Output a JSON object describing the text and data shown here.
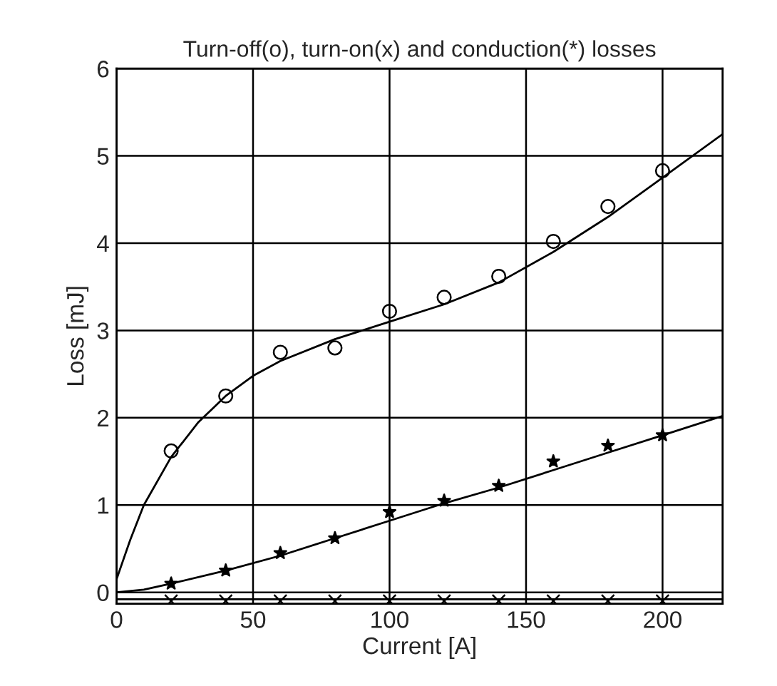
{
  "chart_data": {
    "type": "scatter",
    "title": "Turn-off(o), turn-on(x) and conduction(*) losses",
    "xlabel": "Current [A]",
    "ylabel": "Loss [mJ]",
    "xlim": [
      0,
      222
    ],
    "ylim": [
      -0.13,
      6
    ],
    "xticks": [
      0,
      50,
      100,
      150,
      200
    ],
    "yticks": [
      0,
      1,
      2,
      3,
      4,
      5,
      6
    ],
    "grid": true,
    "legend": false,
    "series": [
      {
        "marker": "circle",
        "color": "#000000",
        "x": [
          20,
          40,
          60,
          80,
          100,
          120,
          140,
          160,
          180,
          200
        ],
        "values": [
          1.62,
          2.25,
          2.75,
          2.8,
          3.22,
          3.38,
          3.62,
          4.02,
          4.42,
          4.83
        ]
      },
      {
        "type": "line",
        "marker": "none",
        "color": "#000000",
        "x": [
          0,
          5,
          10,
          20,
          30,
          40,
          50,
          60,
          80,
          90,
          100,
          120,
          140,
          160,
          180,
          200,
          222
        ],
        "values": [
          0.15,
          0.6,
          1.0,
          1.55,
          1.95,
          2.25,
          2.48,
          2.65,
          2.9,
          3.0,
          3.1,
          3.3,
          3.55,
          3.9,
          4.3,
          4.75,
          5.25
        ]
      },
      {
        "marker": "star",
        "color": "#000000",
        "x": [
          20,
          40,
          60,
          80,
          100,
          120,
          140,
          160,
          180,
          200
        ],
        "values": [
          0.1,
          0.25,
          0.45,
          0.62,
          0.92,
          1.05,
          1.22,
          1.5,
          1.68,
          1.8
        ]
      },
      {
        "type": "line",
        "marker": "none",
        "color": "#000000",
        "x": [
          0,
          10,
          20,
          40,
          60,
          80,
          100,
          120,
          140,
          160,
          180,
          200,
          222
        ],
        "values": [
          0,
          0.03,
          0.1,
          0.25,
          0.42,
          0.62,
          0.82,
          1.02,
          1.2,
          1.4,
          1.6,
          1.8,
          2.02
        ]
      },
      {
        "marker": "cross",
        "color": "#000000",
        "x": [
          20,
          40,
          60,
          80,
          100,
          120,
          140,
          160,
          180,
          200
        ],
        "values": [
          -0.1,
          -0.1,
          -0.1,
          -0.1,
          -0.1,
          -0.1,
          -0.1,
          -0.1,
          -0.1,
          -0.1
        ]
      },
      {
        "type": "line",
        "marker": "none",
        "color": "#000000",
        "x": [
          0,
          222
        ],
        "values": [
          -0.08,
          -0.08
        ]
      }
    ]
  }
}
